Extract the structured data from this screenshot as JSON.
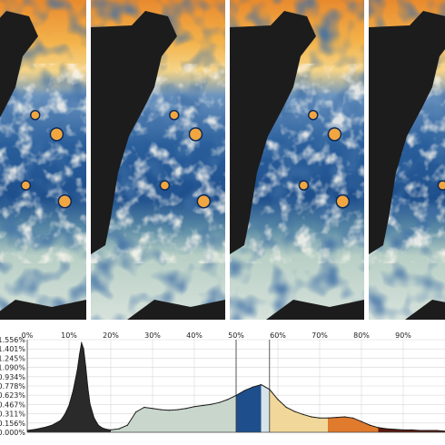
{
  "image": {
    "panel_count": 4,
    "panels": [
      {
        "name": "frame-1",
        "visible": "partial-left-cut"
      },
      {
        "name": "frame-2",
        "visible": "full"
      },
      {
        "name": "frame-3",
        "visible": "full"
      },
      {
        "name": "frame-4",
        "visible": "partial-right-cut"
      }
    ],
    "colors": {
      "land": "#1c1c1c",
      "warm_water": "#f2a640",
      "hot_core": "#e05a1e",
      "cool_swirl": "#1e4f8c",
      "deep_blue": "#0b2a5a",
      "pale_sea": "#c7d8cf",
      "white_swirl": "#f4f0e6",
      "divider": "#ffffff"
    }
  },
  "chart_data": {
    "type": "area",
    "title": "",
    "xlabel": "",
    "ylabel": "",
    "x_ticks": [
      "0%",
      "10%",
      "20%",
      "30%",
      "40%",
      "50%",
      "60%",
      "70%",
      "80%",
      "90%"
    ],
    "y_ticks": [
      "0.000%",
      "0.156%",
      "0.311%",
      "0.467%",
      "0.623%",
      "0.778%",
      "0.934%",
      "1.090%",
      "1.245%",
      "1.401%",
      "1.556%"
    ],
    "xlim": [
      0,
      100
    ],
    "ylim": [
      0,
      1.556
    ],
    "grid": true,
    "x": [
      0,
      2,
      4,
      6,
      8,
      9,
      10,
      11,
      12,
      12.5,
      13,
      13.5,
      14,
      14.5,
      15,
      16,
      17,
      18,
      19,
      20,
      22,
      24,
      26,
      28,
      30,
      32,
      34,
      36,
      38,
      40,
      42,
      44,
      46,
      48,
      50,
      52,
      54,
      56,
      58,
      60,
      62,
      64,
      66,
      68,
      70,
      72,
      74,
      76,
      78,
      80,
      82,
      84,
      86,
      88,
      90,
      92,
      94,
      96,
      98,
      100
    ],
    "values": [
      0.03,
      0.05,
      0.08,
      0.12,
      0.2,
      0.3,
      0.45,
      0.7,
      1.05,
      1.3,
      1.5,
      1.4,
      1.1,
      0.75,
      0.48,
      0.24,
      0.12,
      0.07,
      0.05,
      0.04,
      0.06,
      0.12,
      0.34,
      0.42,
      0.4,
      0.38,
      0.37,
      0.38,
      0.4,
      0.43,
      0.45,
      0.47,
      0.5,
      0.55,
      0.62,
      0.7,
      0.76,
      0.8,
      0.72,
      0.55,
      0.42,
      0.35,
      0.3,
      0.26,
      0.24,
      0.24,
      0.25,
      0.26,
      0.24,
      0.18,
      0.12,
      0.08,
      0.06,
      0.05,
      0.04,
      0.04,
      0.03,
      0.03,
      0.03,
      0.02
    ],
    "color_bands": [
      {
        "from": 0,
        "to": 20,
        "color": "#2a2a2a"
      },
      {
        "from": 20,
        "to": 50,
        "color": "#c8d6cc"
      },
      {
        "from": 50,
        "to": 56,
        "color": "#1e4f8c"
      },
      {
        "from": 56,
        "to": 58,
        "color": "#d6e4ea"
      },
      {
        "from": 58,
        "to": 72,
        "color": "#f1d79a"
      },
      {
        "from": 72,
        "to": 84,
        "color": "#e07a2c"
      },
      {
        "from": 84,
        "to": 100,
        "color": "#5a1a10"
      }
    ],
    "highlight_range": [
      50,
      58
    ]
  }
}
